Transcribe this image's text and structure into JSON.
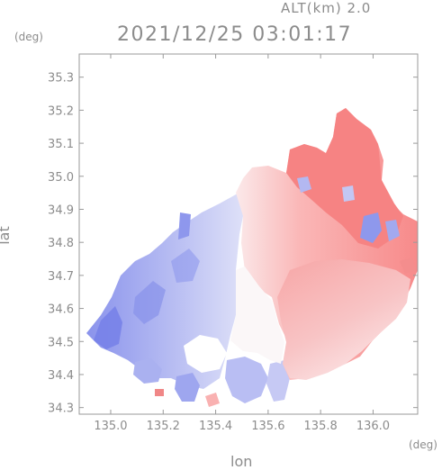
{
  "header": {
    "altitude_label": "ALT(km) 2.0",
    "timestamp": "2021/12/25 03:01:17"
  },
  "axes": {
    "x_label": "lon",
    "y_label": "lat",
    "x_unit": "(deg)",
    "y_unit": "(deg)",
    "x_range": [
      134.88,
      136.17
    ],
    "y_range": [
      34.28,
      35.37
    ],
    "x_ticks": [
      {
        "value": 135.0,
        "label": "135.0"
      },
      {
        "value": 135.2,
        "label": "135.2"
      },
      {
        "value": 135.4,
        "label": "135.4"
      },
      {
        "value": 135.6,
        "label": "135.6"
      },
      {
        "value": 135.8,
        "label": "135.8"
      },
      {
        "value": 136.0,
        "label": "136.0"
      }
    ],
    "y_ticks": [
      {
        "value": 34.3,
        "label": "34.3"
      },
      {
        "value": 34.4,
        "label": "34.4"
      },
      {
        "value": 34.5,
        "label": "34.5"
      },
      {
        "value": 34.6,
        "label": "34.6"
      },
      {
        "value": 34.7,
        "label": "34.7"
      },
      {
        "value": 34.8,
        "label": "34.8"
      },
      {
        "value": 34.9,
        "label": "34.9"
      },
      {
        "value": 35.0,
        "label": "35.0"
      },
      {
        "value": 35.1,
        "label": "35.1"
      },
      {
        "value": 35.2,
        "label": "35.2"
      },
      {
        "value": 35.3,
        "label": "35.3"
      }
    ]
  },
  "colors": {
    "toward_radar": "#7c86ea",
    "away_from_radar": "#f77a7a",
    "near_zero": "#f6f0f2",
    "axis": "#9a9a9a"
  }
}
